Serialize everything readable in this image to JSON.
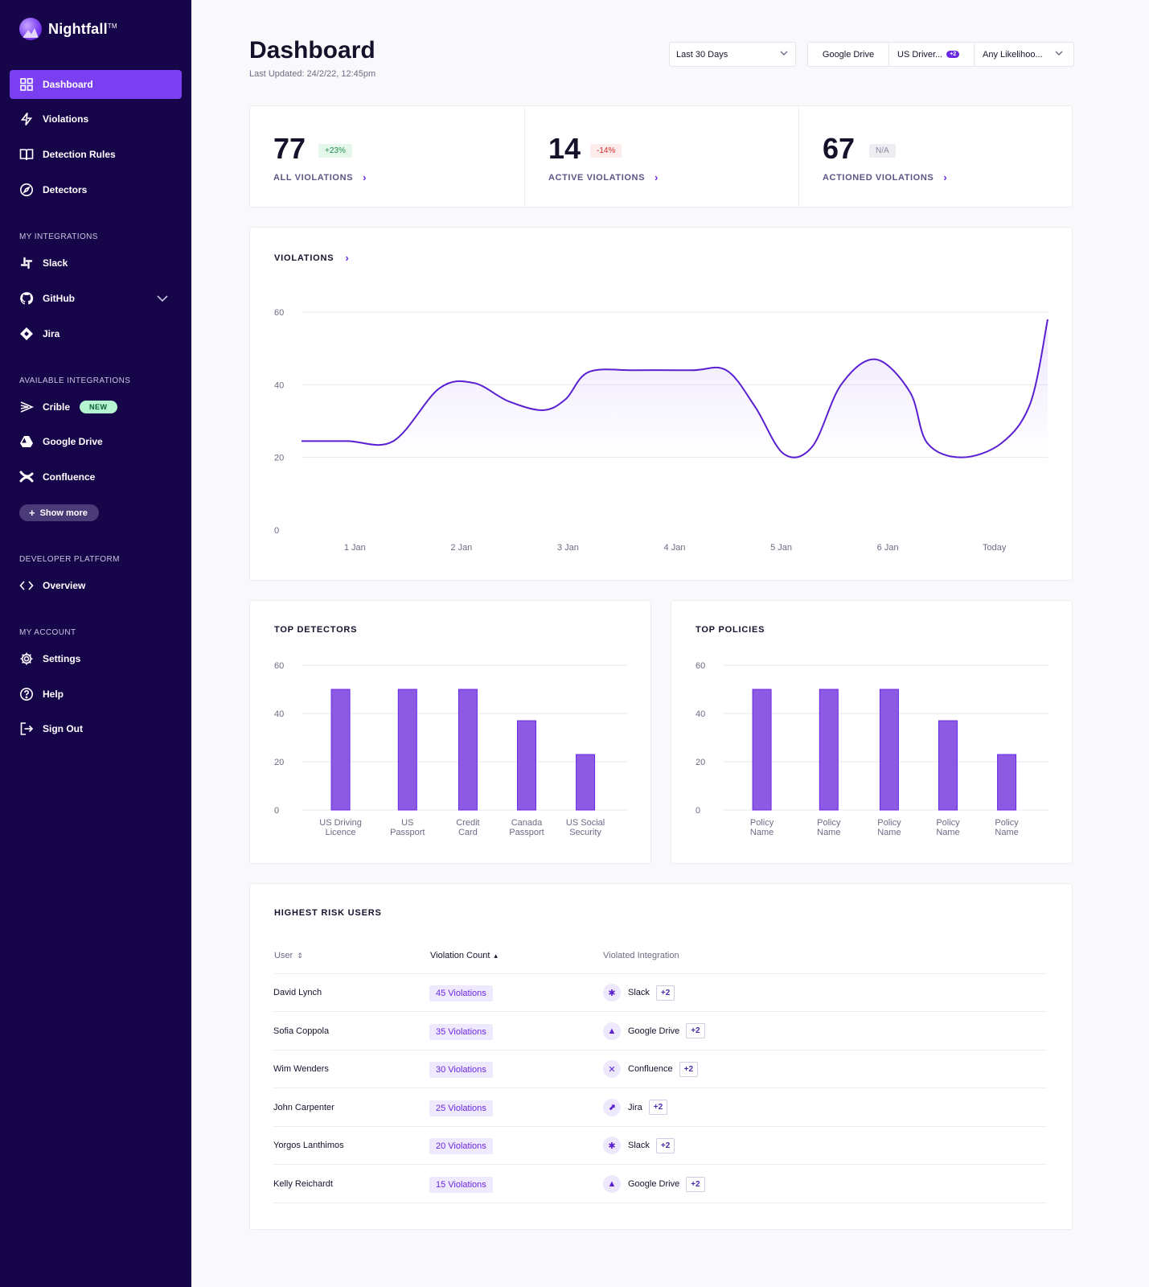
{
  "app": {
    "name": "Nightfall",
    "trademark": "TM"
  },
  "sidebar": {
    "main": [
      {
        "label": "Dashboard"
      },
      {
        "label": "Violations"
      },
      {
        "label": "Detection Rules"
      },
      {
        "label": "Detectors"
      }
    ],
    "sections": {
      "my_integrations": "MY INTEGRATIONS",
      "available_integrations": "AVAILABLE INTEGRATIONS",
      "developer_platform": "DEVELOPER PLATFORM",
      "my_account": "MY ACCOUNT"
    },
    "my_integrations": [
      {
        "label": "Slack"
      },
      {
        "label": "GitHub"
      },
      {
        "label": "Jira"
      }
    ],
    "available_integrations": [
      {
        "label": "Crible",
        "badge": "NEW"
      },
      {
        "label": "Google Drive"
      },
      {
        "label": "Confluence"
      }
    ],
    "show_more": "Show more",
    "developer": [
      {
        "label": "Overview"
      }
    ],
    "account": [
      {
        "label": "Settings"
      },
      {
        "label": "Help"
      },
      {
        "label": "Sign Out"
      }
    ]
  },
  "header": {
    "title": "Dashboard",
    "updated": "Last Updated: 24/2/22, 12:45pm",
    "date_filter": "Last 30 Days",
    "integration_filter": "Google Drive",
    "detector_filter": "US Driver...",
    "detector_extra": "+2",
    "likelihood_filter": "Any Likelihoo..."
  },
  "stats": [
    {
      "value": "77",
      "change": "+23%",
      "label": "ALL VIOLATIONS",
      "tone": "up"
    },
    {
      "value": "14",
      "change": "-14%",
      "label": "ACTIVE VIOLATIONS",
      "tone": "down"
    },
    {
      "value": "67",
      "change": "N/A",
      "label": "ACTIONED VIOLATIONS",
      "tone": "neutral"
    }
  ],
  "colors": {
    "accent": "#6a28e5",
    "bar": "#8c5ae3",
    "sidebar": "#170549"
  },
  "chart_data": [
    {
      "type": "area",
      "title": "VIOLATIONS",
      "categories": [
        "1 Jan",
        "2 Jan",
        "3 Jan",
        "4 Jan",
        "5 Jan",
        "6 Jan",
        "Today"
      ],
      "yticks": [
        0,
        20,
        40,
        60
      ],
      "ylim": [
        0,
        60
      ],
      "series": [
        {
          "name": "Violations",
          "points": [
            [
              0,
              24.5
            ],
            [
              0.4,
              24.5
            ],
            [
              0.8,
              24.5
            ],
            [
              1.2,
              39
            ],
            [
              1.5,
              40.5
            ],
            [
              1.8,
              35.5
            ],
            [
              2.1,
              33
            ],
            [
              2.3,
              36
            ],
            [
              2.5,
              43.5
            ],
            [
              2.9,
              44
            ],
            [
              3.4,
              44
            ],
            [
              3.7,
              44
            ],
            [
              3.95,
              34
            ],
            [
              4.2,
              21
            ],
            [
              4.45,
              23
            ],
            [
              4.7,
              40
            ],
            [
              5.0,
              47
            ],
            [
              5.3,
              38
            ],
            [
              5.45,
              24
            ],
            [
              5.75,
              20
            ],
            [
              6.1,
              24
            ],
            [
              6.35,
              35
            ],
            [
              6.5,
              58
            ]
          ]
        }
      ]
    },
    {
      "type": "bar",
      "title": "TOP DETECTORS",
      "categories": [
        [
          "US Driving",
          "Licence"
        ],
        [
          "US",
          "Passport"
        ],
        [
          "Credit",
          "Card"
        ],
        [
          "Canada",
          "Passport"
        ],
        [
          "US Social",
          "Security"
        ]
      ],
      "values": [
        50,
        50,
        50,
        37,
        23
      ],
      "yticks": [
        0,
        20,
        40,
        60
      ],
      "ylim": [
        0,
        60
      ]
    },
    {
      "type": "bar",
      "title": "TOP POLICIES",
      "categories": [
        [
          "Policy",
          "Name"
        ],
        [
          "Policy",
          "Name"
        ],
        [
          "Policy",
          "Name"
        ],
        [
          "Policy",
          "Name"
        ],
        [
          "Policy",
          "Name"
        ]
      ],
      "values": [
        50,
        50,
        50,
        37,
        23
      ],
      "yticks": [
        0,
        20,
        40,
        60
      ],
      "ylim": [
        0,
        60
      ]
    }
  ],
  "risk_users": {
    "title": "HIGHEST RISK USERS",
    "columns": {
      "user": "User",
      "count": "Violation Count",
      "integration": "Violated Integration"
    },
    "rows": [
      {
        "user": "David Lynch",
        "count": "45 Violations",
        "integration": "Slack",
        "extra": "+2",
        "icon": "slack-icon"
      },
      {
        "user": "Sofia Coppola",
        "count": "35 Violations",
        "integration": "Google Drive",
        "extra": "+2",
        "icon": "google-drive-icon"
      },
      {
        "user": "Wim Wenders",
        "count": "30 Violations",
        "integration": "Confluence",
        "extra": "+2",
        "icon": "confluence-icon"
      },
      {
        "user": "John Carpenter",
        "count": "25 Violations",
        "integration": "Jira",
        "extra": "+2",
        "icon": "jira-icon"
      },
      {
        "user": "Yorgos Lanthimos",
        "count": "20 Violations",
        "integration": "Slack",
        "extra": "+2",
        "icon": "slack-icon"
      },
      {
        "user": "Kelly Reichardt",
        "count": "15 Violations",
        "integration": "Google Drive",
        "extra": "+2",
        "icon": "google-drive-icon"
      }
    ]
  }
}
